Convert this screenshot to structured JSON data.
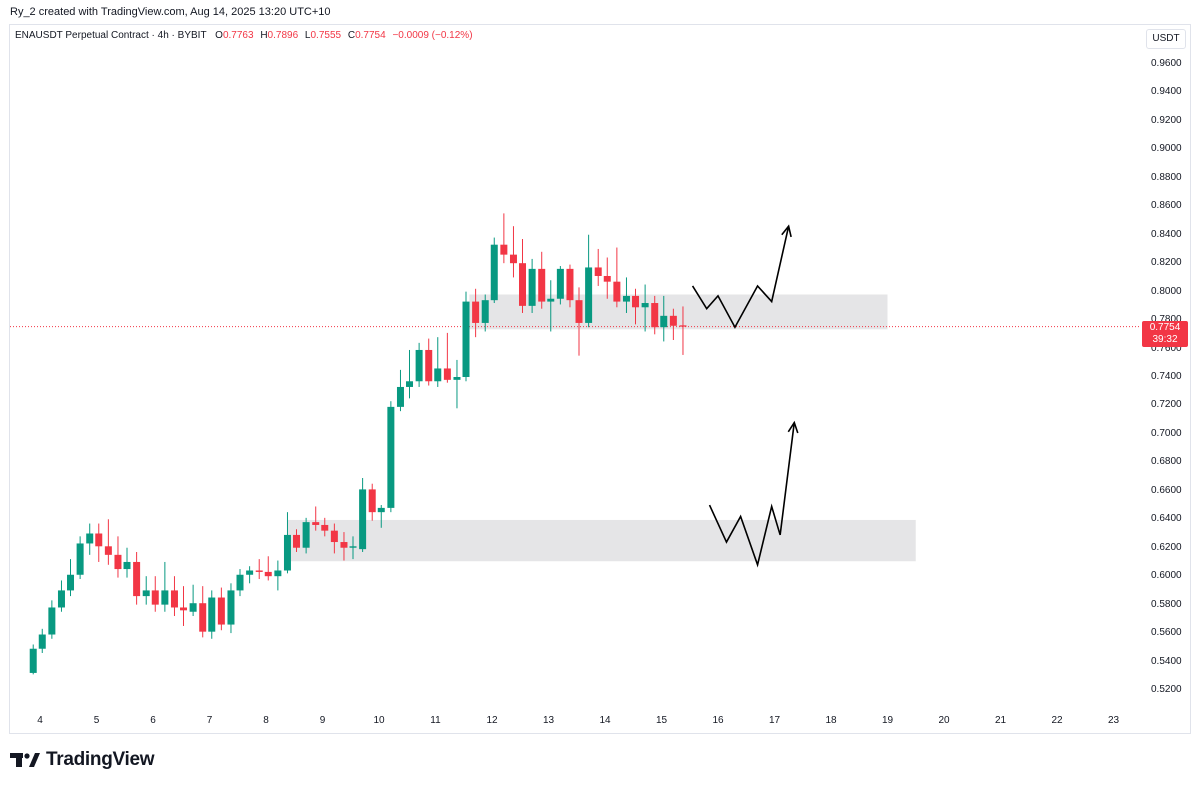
{
  "header": {
    "attribution": "Ry_2 created with TradingView.com, Aug 14, 2025 13:20 UTC+10"
  },
  "legend": {
    "symbol": "ENAUSDT Perpetual Contract · 4h · BYBIT",
    "open_label": "O",
    "open": "0.7763",
    "high_label": "H",
    "high": "0.7896",
    "low_label": "L",
    "low": "0.7555",
    "close_label": "C",
    "close": "0.7754",
    "change": "−0.0009 (−0.12%)"
  },
  "currency": "USDT",
  "last_price": {
    "price": "0.7754",
    "countdown": "39:32"
  },
  "brand": {
    "name": "TradingView"
  },
  "colors": {
    "up": "#089981",
    "down": "#f23645",
    "zone": "#e0e1e3",
    "price_line": "#f23645"
  },
  "icons": [
    "tradingview-logo-icon"
  ],
  "chart_data": {
    "type": "candlestick",
    "title": "ENAUSDT Perpetual Contract · 4h · BYBIT",
    "ylim": [
      0.51,
      0.975
    ],
    "y_ticks": [
      "0.9600",
      "0.9400",
      "0.9200",
      "0.9000",
      "0.8800",
      "0.8600",
      "0.8400",
      "0.8200",
      "0.8000",
      "0.7800",
      "0.7600",
      "0.7400",
      "0.7200",
      "0.7000",
      "0.6800",
      "0.6600",
      "0.6400",
      "0.6200",
      "0.6000",
      "0.5800",
      "0.5600",
      "0.5400",
      "0.5200"
    ],
    "x_ticks": [
      "4",
      "5",
      "6",
      "7",
      "8",
      "9",
      "10",
      "11",
      "12",
      "13",
      "14",
      "15",
      "16",
      "17",
      "18",
      "19",
      "20",
      "21",
      "22",
      "23"
    ],
    "x_tick_days": [
      4,
      5,
      6,
      7,
      8,
      9,
      10,
      11,
      12,
      13,
      14,
      15,
      16,
      17,
      18,
      19,
      20,
      21,
      22,
      23
    ],
    "grid": false,
    "last_price": 0.7754,
    "candles": [
      {
        "t": 3.88,
        "o": 0.532,
        "h": 0.552,
        "l": 0.531,
        "c": 0.549
      },
      {
        "t": 4.04,
        "o": 0.549,
        "h": 0.563,
        "l": 0.546,
        "c": 0.559
      },
      {
        "t": 4.21,
        "o": 0.559,
        "h": 0.583,
        "l": 0.556,
        "c": 0.578
      },
      {
        "t": 4.38,
        "o": 0.578,
        "h": 0.597,
        "l": 0.575,
        "c": 0.59
      },
      {
        "t": 4.54,
        "o": 0.59,
        "h": 0.612,
        "l": 0.586,
        "c": 0.601
      },
      {
        "t": 4.71,
        "o": 0.601,
        "h": 0.628,
        "l": 0.598,
        "c": 0.623
      },
      {
        "t": 4.88,
        "o": 0.623,
        "h": 0.637,
        "l": 0.615,
        "c": 0.63
      },
      {
        "t": 5.04,
        "o": 0.63,
        "h": 0.637,
        "l": 0.61,
        "c": 0.621
      },
      {
        "t": 5.21,
        "o": 0.621,
        "h": 0.64,
        "l": 0.608,
        "c": 0.615
      },
      {
        "t": 5.38,
        "o": 0.615,
        "h": 0.628,
        "l": 0.599,
        "c": 0.605
      },
      {
        "t": 5.54,
        "o": 0.605,
        "h": 0.62,
        "l": 0.599,
        "c": 0.61
      },
      {
        "t": 5.71,
        "o": 0.61,
        "h": 0.617,
        "l": 0.58,
        "c": 0.586
      },
      {
        "t": 5.88,
        "o": 0.586,
        "h": 0.6,
        "l": 0.58,
        "c": 0.59
      },
      {
        "t": 6.04,
        "o": 0.59,
        "h": 0.6,
        "l": 0.575,
        "c": 0.58
      },
      {
        "t": 6.21,
        "o": 0.58,
        "h": 0.61,
        "l": 0.575,
        "c": 0.59
      },
      {
        "t": 6.38,
        "o": 0.59,
        "h": 0.6,
        "l": 0.572,
        "c": 0.578
      },
      {
        "t": 6.54,
        "o": 0.578,
        "h": 0.593,
        "l": 0.565,
        "c": 0.576
      },
      {
        "t": 6.71,
        "o": 0.575,
        "h": 0.594,
        "l": 0.572,
        "c": 0.581
      },
      {
        "t": 6.88,
        "o": 0.581,
        "h": 0.593,
        "l": 0.557,
        "c": 0.561
      },
      {
        "t": 7.04,
        "o": 0.561,
        "h": 0.59,
        "l": 0.556,
        "c": 0.585
      },
      {
        "t": 7.21,
        "o": 0.585,
        "h": 0.592,
        "l": 0.562,
        "c": 0.566
      },
      {
        "t": 7.38,
        "o": 0.566,
        "h": 0.595,
        "l": 0.56,
        "c": 0.59
      },
      {
        "t": 7.54,
        "o": 0.59,
        "h": 0.605,
        "l": 0.586,
        "c": 0.601
      },
      {
        "t": 7.71,
        "o": 0.601,
        "h": 0.607,
        "l": 0.595,
        "c": 0.604
      },
      {
        "t": 7.88,
        "o": 0.604,
        "h": 0.612,
        "l": 0.598,
        "c": 0.603
      },
      {
        "t": 8.04,
        "o": 0.603,
        "h": 0.614,
        "l": 0.597,
        "c": 0.6
      },
      {
        "t": 8.21,
        "o": 0.6,
        "h": 0.611,
        "l": 0.59,
        "c": 0.604
      },
      {
        "t": 8.38,
        "o": 0.604,
        "h": 0.645,
        "l": 0.602,
        "c": 0.629
      },
      {
        "t": 8.54,
        "o": 0.629,
        "h": 0.633,
        "l": 0.617,
        "c": 0.62
      },
      {
        "t": 8.71,
        "o": 0.62,
        "h": 0.641,
        "l": 0.616,
        "c": 0.638
      },
      {
        "t": 8.88,
        "o": 0.638,
        "h": 0.649,
        "l": 0.632,
        "c": 0.636
      },
      {
        "t": 9.04,
        "o": 0.636,
        "h": 0.641,
        "l": 0.628,
        "c": 0.632
      },
      {
        "t": 9.21,
        "o": 0.632,
        "h": 0.637,
        "l": 0.616,
        "c": 0.624
      },
      {
        "t": 9.38,
        "o": 0.624,
        "h": 0.631,
        "l": 0.611,
        "c": 0.62
      },
      {
        "t": 9.54,
        "o": 0.62,
        "h": 0.628,
        "l": 0.612,
        "c": 0.621
      },
      {
        "t": 9.71,
        "o": 0.619,
        "h": 0.669,
        "l": 0.617,
        "c": 0.661
      },
      {
        "t": 9.88,
        "o": 0.661,
        "h": 0.665,
        "l": 0.639,
        "c": 0.645
      },
      {
        "t": 10.04,
        "o": 0.645,
        "h": 0.65,
        "l": 0.634,
        "c": 0.648
      },
      {
        "t": 10.21,
        "o": 0.648,
        "h": 0.723,
        "l": 0.645,
        "c": 0.719
      },
      {
        "t": 10.38,
        "o": 0.719,
        "h": 0.745,
        "l": 0.716,
        "c": 0.733
      },
      {
        "t": 10.54,
        "o": 0.733,
        "h": 0.759,
        "l": 0.725,
        "c": 0.737
      },
      {
        "t": 10.71,
        "o": 0.737,
        "h": 0.764,
        "l": 0.733,
        "c": 0.759
      },
      {
        "t": 10.88,
        "o": 0.759,
        "h": 0.767,
        "l": 0.734,
        "c": 0.737
      },
      {
        "t": 11.04,
        "o": 0.737,
        "h": 0.768,
        "l": 0.733,
        "c": 0.746
      },
      {
        "t": 11.21,
        "o": 0.746,
        "h": 0.771,
        "l": 0.736,
        "c": 0.738
      },
      {
        "t": 11.38,
        "o": 0.738,
        "h": 0.752,
        "l": 0.718,
        "c": 0.74
      },
      {
        "t": 11.54,
        "o": 0.74,
        "h": 0.8,
        "l": 0.737,
        "c": 0.793
      },
      {
        "t": 11.71,
        "o": 0.793,
        "h": 0.802,
        "l": 0.768,
        "c": 0.778
      },
      {
        "t": 11.88,
        "o": 0.778,
        "h": 0.798,
        "l": 0.772,
        "c": 0.794
      },
      {
        "t": 12.04,
        "o": 0.794,
        "h": 0.838,
        "l": 0.792,
        "c": 0.833
      },
      {
        "t": 12.21,
        "o": 0.833,
        "h": 0.855,
        "l": 0.82,
        "c": 0.826
      },
      {
        "t": 12.38,
        "o": 0.826,
        "h": 0.846,
        "l": 0.81,
        "c": 0.82
      },
      {
        "t": 12.54,
        "o": 0.82,
        "h": 0.837,
        "l": 0.785,
        "c": 0.79
      },
      {
        "t": 12.71,
        "o": 0.79,
        "h": 0.823,
        "l": 0.785,
        "c": 0.816
      },
      {
        "t": 12.88,
        "o": 0.816,
        "h": 0.828,
        "l": 0.788,
        "c": 0.793
      },
      {
        "t": 13.04,
        "o": 0.793,
        "h": 0.808,
        "l": 0.772,
        "c": 0.795
      },
      {
        "t": 13.21,
        "o": 0.795,
        "h": 0.818,
        "l": 0.791,
        "c": 0.816
      },
      {
        "t": 13.38,
        "o": 0.816,
        "h": 0.819,
        "l": 0.789,
        "c": 0.794
      },
      {
        "t": 13.54,
        "o": 0.794,
        "h": 0.803,
        "l": 0.755,
        "c": 0.778
      },
      {
        "t": 13.71,
        "o": 0.778,
        "h": 0.84,
        "l": 0.775,
        "c": 0.817
      },
      {
        "t": 13.88,
        "o": 0.817,
        "h": 0.83,
        "l": 0.804,
        "c": 0.811
      },
      {
        "t": 14.04,
        "o": 0.811,
        "h": 0.824,
        "l": 0.795,
        "c": 0.807
      },
      {
        "t": 14.21,
        "o": 0.807,
        "h": 0.831,
        "l": 0.789,
        "c": 0.793
      },
      {
        "t": 14.38,
        "o": 0.793,
        "h": 0.81,
        "l": 0.785,
        "c": 0.797
      },
      {
        "t": 14.54,
        "o": 0.797,
        "h": 0.802,
        "l": 0.777,
        "c": 0.789
      },
      {
        "t": 14.71,
        "o": 0.789,
        "h": 0.805,
        "l": 0.772,
        "c": 0.792
      },
      {
        "t": 14.88,
        "o": 0.792,
        "h": 0.797,
        "l": 0.77,
        "c": 0.775
      },
      {
        "t": 15.04,
        "o": 0.775,
        "h": 0.797,
        "l": 0.765,
        "c": 0.783
      },
      {
        "t": 15.21,
        "o": 0.783,
        "h": 0.788,
        "l": 0.766,
        "c": 0.776
      },
      {
        "t": 15.38,
        "o": 0.7763,
        "h": 0.7896,
        "l": 0.7555,
        "c": 0.7754
      }
    ],
    "zones": [
      {
        "x0": 11.6,
        "x1": 19.0,
        "y_low": 0.7735,
        "y_high": 0.798
      },
      {
        "x0": 8.38,
        "x1": 19.5,
        "y_low": 0.6105,
        "y_high": 0.6395
      }
    ],
    "projections": [
      {
        "points": [
          [
            15.55,
            0.804
          ],
          [
            15.8,
            0.788
          ],
          [
            16.0,
            0.797
          ],
          [
            16.3,
            0.775
          ],
          [
            16.7,
            0.804
          ],
          [
            16.95,
            0.793
          ],
          [
            17.25,
            0.846
          ]
        ]
      },
      {
        "points": [
          [
            15.85,
            0.65
          ],
          [
            16.15,
            0.624
          ],
          [
            16.4,
            0.642
          ],
          [
            16.7,
            0.608
          ],
          [
            16.95,
            0.649
          ],
          [
            17.1,
            0.629
          ],
          [
            17.35,
            0.708
          ]
        ]
      }
    ]
  }
}
